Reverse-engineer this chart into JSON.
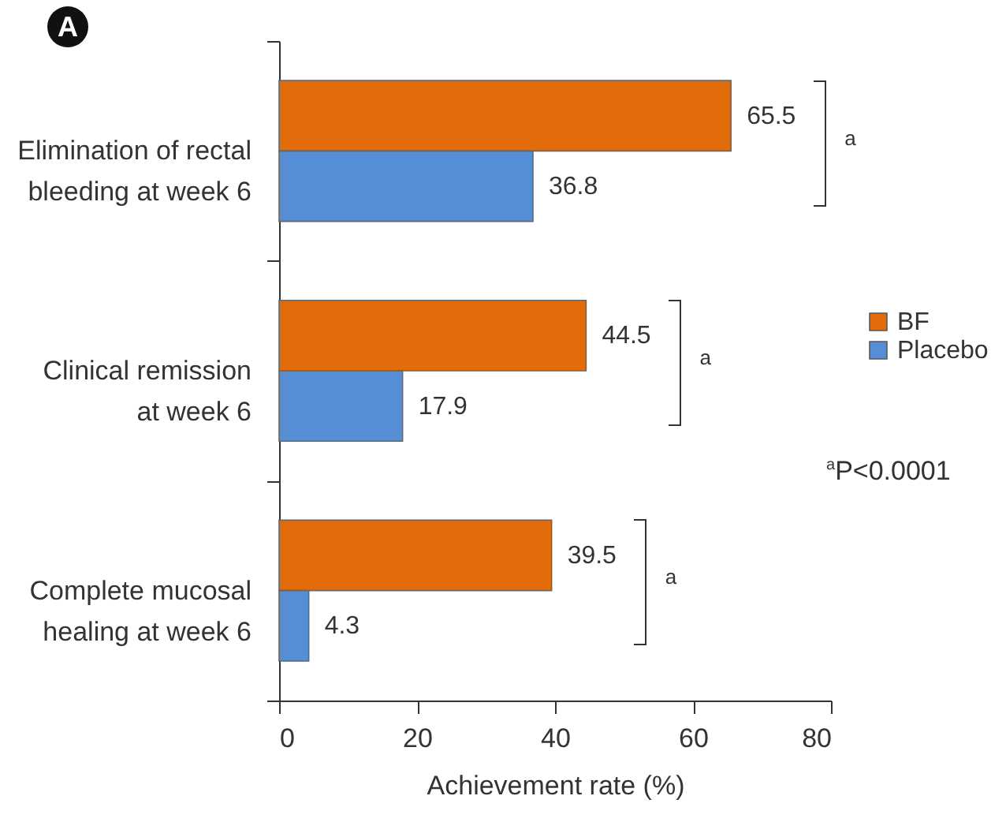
{
  "chart_data": {
    "type": "bar",
    "orientation": "horizontal",
    "xlabel": "Achievement rate (%)",
    "categories": [
      "Elimination of rectal bleeding at week 6",
      "Clinical remission at week 6",
      "Complete mucosal healing at week 6"
    ],
    "series": [
      {
        "name": "BF",
        "color": "#e36c0a",
        "values": [
          65.5,
          44.5,
          39.5
        ]
      },
      {
        "name": "Placebo",
        "color": "#558ed5",
        "values": [
          36.8,
          17.9,
          4.3
        ]
      }
    ],
    "xlim": [
      0,
      80
    ],
    "xticks": [
      0,
      20,
      40,
      60,
      80
    ],
    "data_labels": true,
    "legend": "right",
    "grid": false,
    "annotations": [
      "A",
      "a",
      "a",
      "a",
      "$^{a}$P<0.0001"
    ]
  }
}
